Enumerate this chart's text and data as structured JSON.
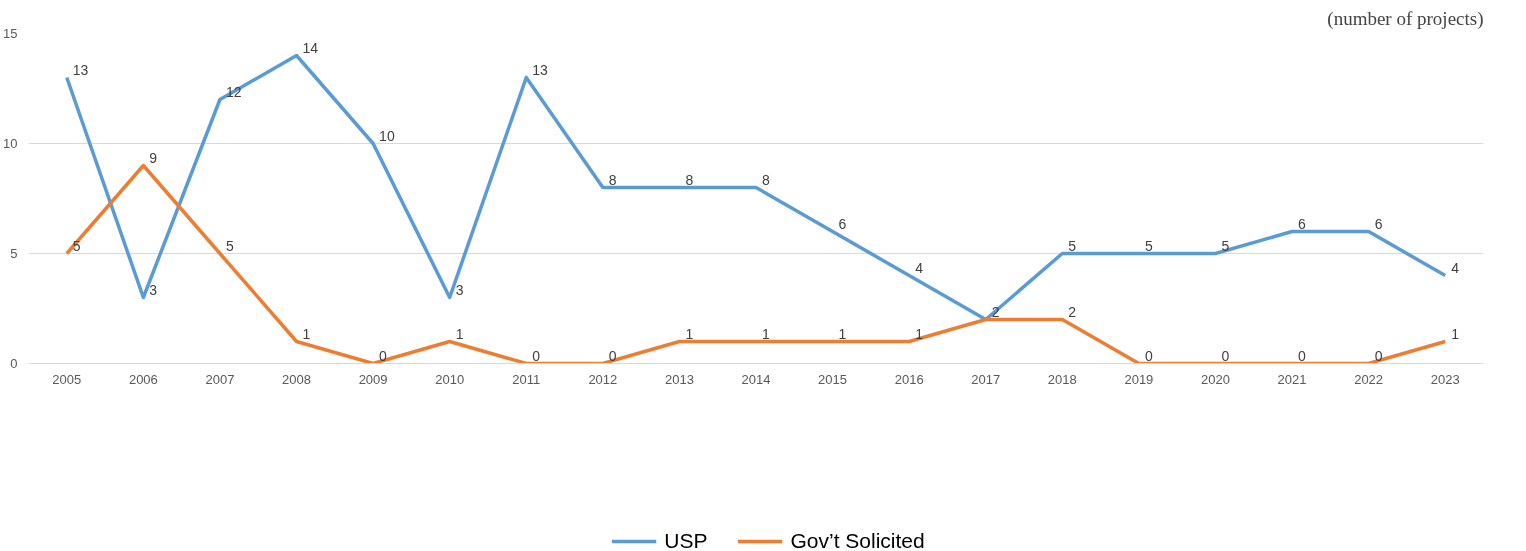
{
  "chart_data": {
    "type": "line",
    "annotations": [
      "(number of projects)"
    ],
    "categories": [
      "2005",
      "2006",
      "2007",
      "2008",
      "2009",
      "2010",
      "2011",
      "2012",
      "2013",
      "2014",
      "2015",
      "2016",
      "2017",
      "2018",
      "2019",
      "2020",
      "2021",
      "2022",
      "2023"
    ],
    "series": [
      {
        "name": "USP",
        "color": "#5b9bd5",
        "values": [
          13,
          3,
          12,
          14,
          10,
          3,
          13,
          8,
          8,
          8,
          6,
          4,
          2,
          5,
          5,
          5,
          6,
          6,
          4
        ]
      },
      {
        "name": "Gov’t Solicited",
        "color": "#ed7d31",
        "values": [
          5,
          9,
          5,
          1,
          0,
          1,
          0,
          0,
          1,
          1,
          1,
          1,
          2,
          2,
          0,
          0,
          0,
          0,
          1
        ],
        "value_labels": [
          "5",
          "9",
          "5",
          "1",
          "0",
          "1",
          "0",
          "0",
          "1",
          "1",
          "1",
          "1",
          null,
          "2",
          "0",
          "0",
          "0",
          "0",
          "1"
        ]
      }
    ],
    "ylim": [
      0,
      15
    ],
    "yticks": [
      0,
      5,
      10,
      15
    ],
    "grid": "y",
    "legend": "bottom",
    "data_labels": true
  }
}
